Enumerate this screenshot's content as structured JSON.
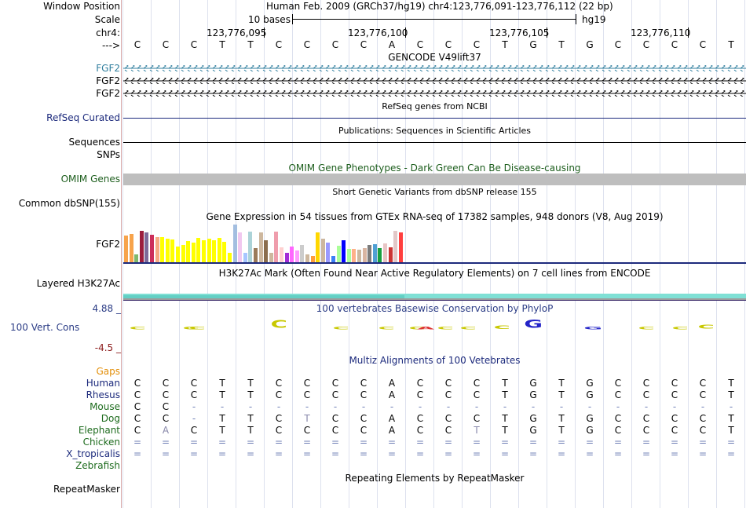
{
  "header": {
    "window_position_label": "Window Position",
    "scale_label": "Scale",
    "chrom_label": "chr4:",
    "strand_label": "--->",
    "assembly_info": "Human Feb. 2009 (GRCh37/hg19)   chr4:123,776,091-123,776,112 (22 bp)",
    "scale_text": "10 bases",
    "scale_db": "hg19",
    "coords": [
      "123,776,095",
      "123,776,100",
      "123,776,105",
      "123,776,110"
    ]
  },
  "bases": [
    "C",
    "C",
    "C",
    "T",
    "T",
    "C",
    "C",
    "C",
    "C",
    "A",
    "C",
    "C",
    "C",
    "T",
    "G",
    "T",
    "G",
    "C",
    "C",
    "C",
    "C",
    "T"
  ],
  "tracks": {
    "gencode": {
      "title": "GENCODE V49lift37",
      "genes": [
        "FGF2",
        "FGF2",
        "FGF2"
      ],
      "color_first": "#2f7e9e"
    },
    "refseq": {
      "title": "RefSeq genes from NCBI",
      "label": "RefSeq Curated"
    },
    "publications": {
      "title": "Publications: Sequences in Scientific Articles",
      "label_seq": "Sequences",
      "label_snp": "SNPs"
    },
    "omim": {
      "title": "OMIM Gene Phenotypes - Dark Green Can Be Disease-causing",
      "label": "OMIM Genes",
      "color": "#1d5e1d"
    },
    "dbsnp": {
      "title": "Short Genetic Variants from dbSNP release 155",
      "label": "Common dbSNP(155)"
    },
    "gtex": {
      "title": "Gene Expression in 54 tissues from GTEx RNA-seq of 17382 samples, 948 donors (V8, Aug 2019)",
      "label": "FGF2"
    },
    "h3k27ac": {
      "title": "H3K27Ac Mark (Often Found Near Active Regulatory Elements) on 7 cell lines from ENCODE",
      "label": "Layered H3K27Ac"
    },
    "phylop": {
      "title": "100 vertebrates Basewise Conservation by PhyloP",
      "label": "100 Vert. Cons",
      "max": "4.88 _",
      "min": "-4.5 _",
      "color": "#2c3d86"
    },
    "multiz": {
      "title": "Multiz Alignments of 100 Vetebrates",
      "gaps_label": "Gaps",
      "gaps_color": "#e38f0a",
      "species_color_primate": "#1c2a7c",
      "species_color_other": "#1d6b1d"
    },
    "repeatmasker": {
      "title": "Repeating Elements by RepeatMasker",
      "label": "RepeatMasker"
    }
  },
  "species": [
    {
      "name": "Human",
      "seq": [
        "C",
        "C",
        "C",
        "T",
        "T",
        "C",
        "C",
        "C",
        "C",
        "A",
        "C",
        "C",
        "C",
        "T",
        "G",
        "T",
        "G",
        "C",
        "C",
        "C",
        "C",
        "T"
      ]
    },
    {
      "name": "Rhesus",
      "seq": [
        "C",
        "C",
        "C",
        "T",
        "T",
        "C",
        "C",
        "C",
        "C",
        "A",
        "C",
        "C",
        "C",
        "T",
        "G",
        "T",
        "G",
        "C",
        "C",
        "C",
        "C",
        "T"
      ]
    },
    {
      "name": "Mouse",
      "seq": [
        "C",
        "C",
        "-",
        "-",
        "-",
        "-",
        "-",
        "-",
        "-",
        "-",
        "-",
        "-",
        "-",
        "-",
        "-",
        "-",
        "-",
        "-",
        "-",
        "-",
        "-",
        "-"
      ]
    },
    {
      "name": "Dog",
      "seq": [
        "C",
        "C",
        "-",
        "T",
        "T",
        "C",
        "T",
        "C",
        "C",
        "A",
        "C",
        "C",
        "C",
        "T",
        "G",
        "T",
        "G",
        "C",
        "C",
        "C",
        "C",
        "T"
      ]
    },
    {
      "name": "Elephant",
      "seq": [
        "C",
        "A",
        "C",
        "T",
        "T",
        "C",
        "C",
        "C",
        "C",
        "A",
        "C",
        "C",
        "T",
        "T",
        "G",
        "T",
        "G",
        "C",
        "C",
        "C",
        "C",
        "T"
      ]
    },
    {
      "name": "Chicken",
      "seq": [
        "=",
        "=",
        "=",
        "=",
        "=",
        "=",
        "=",
        "=",
        "=",
        "=",
        "=",
        "=",
        "=",
        "=",
        "=",
        "=",
        "=",
        "=",
        "=",
        "=",
        "=",
        "="
      ]
    },
    {
      "name": "X_tropicalis",
      "seq": [
        "=",
        "=",
        "=",
        "=",
        "=",
        "=",
        "=",
        "=",
        "=",
        "=",
        "=",
        "=",
        "=",
        "=",
        "=",
        "=",
        "=",
        "=",
        "=",
        "=",
        "=",
        "="
      ]
    },
    {
      "name": "Zebrafish",
      "seq": []
    }
  ],
  "gtex_values": [
    0.85,
    0.9,
    0.25,
    1.0,
    0.95,
    0.88,
    0.8,
    0.8,
    0.74,
    0.72,
    0.5,
    0.55,
    0.68,
    0.62,
    0.78,
    0.7,
    0.76,
    0.7,
    0.78,
    0.65,
    0.3,
    1.2,
    0.95,
    0.3,
    0.98,
    0.45,
    0.95,
    0.7,
    0.3,
    0.98,
    0.48,
    0.3,
    0.5,
    0.38,
    0.55,
    0.25,
    0.21,
    0.95,
    0.75,
    0.62,
    0.2,
    0.53,
    0.7,
    0.42,
    0.42,
    0.4,
    0.45,
    0.55,
    0.58,
    0.45,
    0.6,
    0.47,
    1.0,
    0.95
  ],
  "gtex_colors": [
    "#f7a34b",
    "#f7a34b",
    "#80b86c",
    "#9b1d3d",
    "#7d6a99",
    "#cc2e5a",
    "#f6a981",
    "#ffff00",
    "#ffff00",
    "#ffff00",
    "#ffff00",
    "#ffff00",
    "#ffff00",
    "#ffff00",
    "#ffff00",
    "#ffff00",
    "#ffff00",
    "#ffff00",
    "#ffff00",
    "#ffff00",
    "#ffff00",
    "#a3bee0",
    "#f0c8ef",
    "#a7c6ff",
    "#acd3d8",
    "#9b7a5a",
    "#cdb79e",
    "#8b6d4d",
    "#cdb79e",
    "#ef9dac",
    "#ffd0d0",
    "#a32bd7",
    "#ff66ff",
    "#ff99ff",
    "#cccccc",
    "#cdb79e",
    "#ff9d3b",
    "#ffd700",
    "#cdb79e",
    "#9999ff",
    "#3b7ff6",
    "#aaff99",
    "#0000ff",
    "#aaff99",
    "#ffb088",
    "#cdb79e",
    "#d9b5a1",
    "#7b7b7b",
    "#4fa0d4",
    "#17a03f",
    "#e8c5c5",
    "#cc3333",
    "#e2c7c7",
    "#ff3f3f"
  ],
  "phylop_glyphs": [
    {
      "letter": "C",
      "size": 0.2,
      "color": "#c8c800"
    },
    {
      "letter": "C",
      "size": 0.15,
      "color": "#c8c800"
    },
    {
      "letter": "C",
      "size": 0.25,
      "color": "#c8c800"
    },
    {
      "letter": "C",
      "size": 0.9,
      "color": "#c8c800"
    },
    {
      "letter": "C",
      "size": 0.15,
      "color": "#c8c800"
    },
    {
      "letter": "C",
      "size": 0.15,
      "color": "#c8c800"
    },
    {
      "letter": "C",
      "size": 0.15,
      "color": "#c8c800"
    },
    {
      "letter": "A",
      "size": 0.15,
      "color": "#dd3333"
    },
    {
      "letter": "C",
      "size": 0.15,
      "color": "#c8c800"
    },
    {
      "letter": "C",
      "size": 0.15,
      "color": "#c8c800"
    },
    {
      "letter": "C",
      "size": 0.4,
      "color": "#c8c800"
    },
    {
      "letter": "G",
      "size": 1.0,
      "color": "#2424c8"
    },
    {
      "letter": "G",
      "size": 0.3,
      "color": "#2424c8"
    },
    {
      "letter": "C",
      "size": 0.15,
      "color": "#c8c800"
    },
    {
      "letter": "C",
      "size": 0.3,
      "color": "#c8c800"
    },
    {
      "letter": "C",
      "size": 0.5,
      "color": "#c8c800"
    }
  ]
}
